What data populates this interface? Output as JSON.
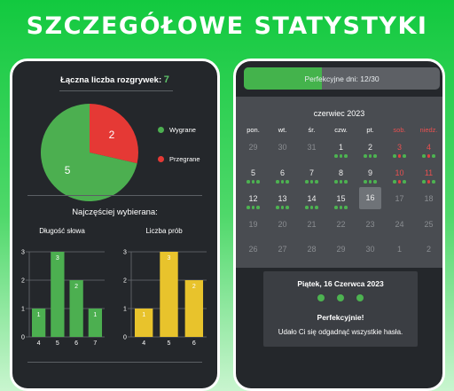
{
  "page": {
    "title": "SZCZEGÓŁOWE STATYSTYKI"
  },
  "stats": {
    "total_label": "Łączna liczba rozgrywek:",
    "total_value": "7",
    "pie": {
      "wins": 5,
      "losses": 2,
      "win_color": "#4caf50",
      "loss_color": "#e53935"
    },
    "legend": {
      "wins": "Wygrane",
      "losses": "Przegrane"
    },
    "most_label": "Najczęściej wybierana:"
  },
  "chart_data": [
    {
      "type": "bar",
      "title": "Długość słowa",
      "categories": [
        "4",
        "5",
        "6",
        "7"
      ],
      "values": [
        1,
        3,
        2,
        1
      ],
      "ylim": [
        0,
        3
      ],
      "yticks": [
        "0",
        "1",
        "2",
        "3"
      ],
      "color": "#4caf50",
      "grid": true
    },
    {
      "type": "bar",
      "title": "Liczba prób",
      "categories": [
        "4",
        "5",
        "6"
      ],
      "values": [
        1,
        3,
        2
      ],
      "ylim": [
        0,
        3
      ],
      "yticks": [
        "0",
        "1",
        "2",
        "3"
      ],
      "color": "#e8c32c",
      "grid": true
    }
  ],
  "perfect": {
    "label": "Perfekcyjne dni: 12/30",
    "value": 12,
    "max": 30
  },
  "calendar": {
    "month": "czerwiec 2023",
    "weekdays": [
      {
        "label": "pon.",
        "weekend": false
      },
      {
        "label": "wt.",
        "weekend": false
      },
      {
        "label": "śr.",
        "weekend": false
      },
      {
        "label": "czw.",
        "weekend": false
      },
      {
        "label": "pt.",
        "weekend": false
      },
      {
        "label": "sob.",
        "weekend": true
      },
      {
        "label": "niedz.",
        "weekend": true
      }
    ],
    "weeks": [
      [
        {
          "d": "29",
          "out": true
        },
        {
          "d": "30",
          "out": true
        },
        {
          "d": "31",
          "out": true
        },
        {
          "d": "1",
          "dots": [
            "g",
            "g",
            "g"
          ]
        },
        {
          "d": "2",
          "dots": [
            "g",
            "g",
            "g"
          ]
        },
        {
          "d": "3",
          "red": true,
          "dots": [
            "g",
            "r",
            "g"
          ]
        },
        {
          "d": "4",
          "red": true,
          "dots": [
            "g",
            "r",
            "g"
          ]
        }
      ],
      [
        {
          "d": "5",
          "dots": [
            "g",
            "g",
            "g"
          ]
        },
        {
          "d": "6",
          "dots": [
            "g",
            "g",
            "g"
          ]
        },
        {
          "d": "7",
          "dots": [
            "g",
            "g",
            "g"
          ]
        },
        {
          "d": "8",
          "dots": [
            "g",
            "g",
            "g"
          ]
        },
        {
          "d": "9",
          "dots": [
            "g",
            "g",
            "g"
          ]
        },
        {
          "d": "10",
          "red": true,
          "dots": [
            "g",
            "r",
            "g"
          ]
        },
        {
          "d": "11",
          "red": true,
          "dots": [
            "g",
            "r",
            "g"
          ]
        }
      ],
      [
        {
          "d": "12",
          "dots": [
            "g",
            "g",
            "g"
          ]
        },
        {
          "d": "13",
          "dots": [
            "g",
            "g",
            "g"
          ]
        },
        {
          "d": "14",
          "dots": [
            "g",
            "g",
            "g"
          ]
        },
        {
          "d": "15",
          "dots": [
            "g",
            "g",
            "g"
          ]
        },
        {
          "d": "16",
          "selected": true
        },
        {
          "d": "17",
          "out": true
        },
        {
          "d": "18",
          "out": true
        }
      ],
      [
        {
          "d": "19",
          "out": true
        },
        {
          "d": "20",
          "out": true
        },
        {
          "d": "21",
          "out": true
        },
        {
          "d": "22",
          "out": true
        },
        {
          "d": "23",
          "out": true
        },
        {
          "d": "24",
          "out": true
        },
        {
          "d": "25",
          "out": true
        }
      ],
      [
        {
          "d": "26",
          "out": true
        },
        {
          "d": "27",
          "out": true
        },
        {
          "d": "28",
          "out": true
        },
        {
          "d": "29",
          "out": true
        },
        {
          "d": "30",
          "out": true
        },
        {
          "d": "1",
          "out": true
        },
        {
          "d": "2",
          "out": true
        }
      ]
    ]
  },
  "detail": {
    "date": "Piątek, 16 Czerwca 2023",
    "dots": [
      "g",
      "g",
      "g"
    ],
    "headline": "Perfekcyjnie!",
    "message": "Udało Ci się odgadnąć wszystkie hasła."
  }
}
